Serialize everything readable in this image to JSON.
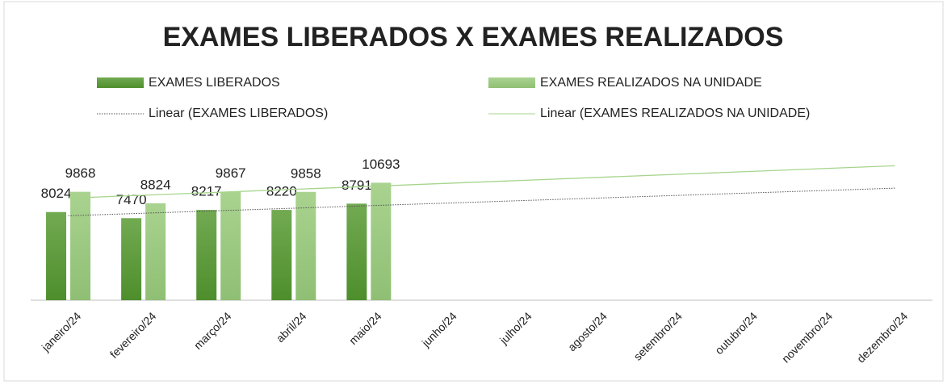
{
  "chart_data": {
    "type": "bar",
    "title": "EXAMES LIBERADOS X EXAMES REALIZADOS",
    "categories": [
      "janeiro/24",
      "fevereiro/24",
      "março/24",
      "abril/24",
      "maio/24",
      "junho/24",
      "julho/24",
      "agosto/24",
      "setembro/24",
      "outubro/24",
      "novembro/24",
      "dezembro/24"
    ],
    "series": [
      {
        "name": "EXAMES LIBERADOS",
        "color": "#5e9c3c",
        "values": [
          8024,
          7470,
          8217,
          8220,
          8791,
          null,
          null,
          null,
          null,
          null,
          null,
          null
        ],
        "trendline": {
          "name": "Linear (EXAMES LIBERADOS)",
          "type": "linear",
          "color": "#555555",
          "dash": true
        }
      },
      {
        "name": "EXAMES REALIZADOS NA UNIDADE",
        "color": "#a6cf8c",
        "values": [
          9868,
          8824,
          9867,
          9858,
          10693,
          null,
          null,
          null,
          null,
          null,
          null,
          null
        ],
        "trendline": {
          "name": "Linear (EXAMES REALIZADOS NA UNIDADE)",
          "type": "linear",
          "color": "#a6d58c",
          "dash": false
        }
      }
    ],
    "ylim": [
      0,
      13000
    ],
    "grid": false,
    "legend": "top"
  }
}
